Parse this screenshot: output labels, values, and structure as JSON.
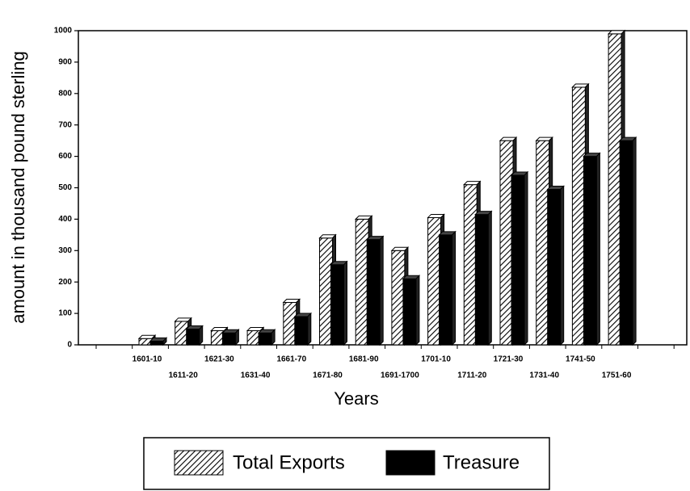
{
  "chart_data": {
    "type": "bar",
    "x_label": "Years",
    "y_label": "amount in thousand pound sterling",
    "categories": [
      "1601-10",
      "1611-20",
      "1621-30",
      "1631-40",
      "1661-70",
      "1671-80",
      "1681-90",
      "1691-1700",
      "1701-10",
      "1711-20",
      "1721-30",
      "1731-40",
      "1741-50",
      "1751-60"
    ],
    "series": [
      {
        "name": "Total Exports",
        "color": "#000000",
        "pattern": "hatch",
        "values": [
          20,
          75,
          45,
          45,
          135,
          340,
          400,
          300,
          405,
          510,
          650,
          650,
          820,
          990
        ]
      },
      {
        "name": "Treasure",
        "color": "#000000",
        "pattern": "solid",
        "values": [
          12,
          50,
          38,
          38,
          90,
          255,
          335,
          210,
          350,
          415,
          540,
          495,
          600,
          650
        ]
      }
    ],
    "ylim": [
      0,
      1000
    ],
    "yticks": [
      0,
      100,
      200,
      300,
      400,
      500,
      600,
      700,
      800,
      900,
      1000
    ],
    "legend": "bottom"
  }
}
